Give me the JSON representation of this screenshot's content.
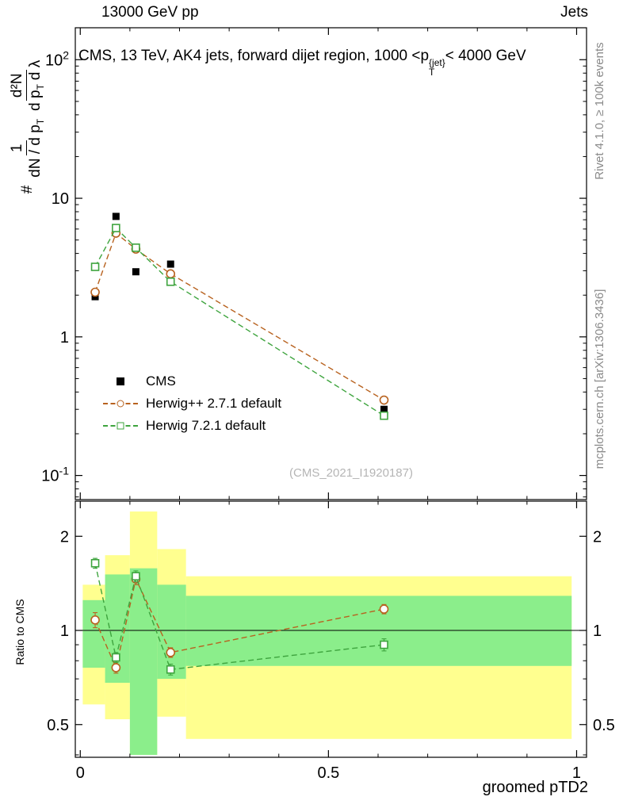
{
  "header": {
    "left": "13000 GeV pp",
    "right": "Jets"
  },
  "main_panel": {
    "title": {
      "pre": "CMS, 13 TeV, AK4 jets, forward dijet region, 1000 <p",
      "sup": "{jet}",
      "sub": "T",
      "post": "< 4000 GeV"
    },
    "watermark": "(CMS_2021_I1920187)",
    "ylabel": {
      "prefix": "#",
      "f1num": "1",
      "f1den_pre": "dN / d p",
      "f1den_sub": "T",
      "f2num": "d²N",
      "f2den_pre": "d p",
      "f2den_sub": "T",
      "f2den_post": "d λ"
    }
  },
  "side_texts": {
    "rivet": "Rivet 4.1.0, ≥ 100k events",
    "mcplots": "mcplots.cern.ch [arXiv:1306.3436]"
  },
  "legend": {
    "items": [
      {
        "label": "CMS",
        "marker": "filled-square",
        "color": "#000000",
        "line": "none"
      },
      {
        "label": "Herwig++ 2.7.1 default",
        "marker": "open-circle",
        "color": "#b8621f",
        "line": "dashed"
      },
      {
        "label": "Herwig 7.2.1 default",
        "marker": "open-square",
        "color": "#3ea43e",
        "line": "dashed"
      }
    ]
  },
  "chart_data": {
    "type": "line",
    "title": "CMS, 13 TeV, AK4 jets, forward dijet region, 1000 < pT{jet} < 4000 GeV",
    "x_label": "groomed pTD2",
    "x_range": [
      -0.01,
      1.02
    ],
    "x": [
      0.03,
      0.072,
      0.112,
      0.182,
      0.612
    ],
    "x_ticks_major": [
      {
        "v": 0,
        "t": "0"
      },
      {
        "v": 0.5,
        "t": "0.5"
      },
      {
        "v": 1,
        "t": "1"
      }
    ],
    "x_ticks_minor": [
      0.1,
      0.2,
      0.3,
      0.4,
      0.6,
      0.7,
      0.8,
      0.9
    ],
    "colors": {
      "band_yellow": "#ffff8f",
      "band_green": "#8bee8b"
    },
    "main": {
      "y_scale": "log",
      "y_range": [
        0.067,
        170
      ],
      "y_ticks": [
        {
          "v": 100,
          "base": "10",
          "exp": "2"
        },
        {
          "v": 10,
          "base": "10",
          "exp": ""
        },
        {
          "v": 1,
          "base": "1",
          "exp": ""
        },
        {
          "v": 0.1,
          "base": "10",
          "exp": "-1"
        }
      ],
      "series": [
        {
          "name": "CMS",
          "marker": "filled-square",
          "color": "#000000",
          "line": "none",
          "values": [
            1.95,
            7.4,
            2.95,
            3.35,
            0.3
          ]
        },
        {
          "name": "Herwig++ 2.7.1 default",
          "marker": "open-circle",
          "color": "#b8621f",
          "line": "dashed",
          "values": [
            2.1,
            5.6,
            4.3,
            2.85,
            0.35
          ],
          "yerr": [
            0.1,
            0.2,
            0.15,
            0.1,
            0.015
          ]
        },
        {
          "name": "Herwig 7.2.1 default",
          "marker": "open-square",
          "color": "#3ea43e",
          "line": "dashed",
          "values": [
            3.2,
            6.1,
            4.4,
            2.5,
            0.27
          ],
          "yerr": [
            0.12,
            0.2,
            0.15,
            0.1,
            0.015
          ]
        }
      ]
    },
    "ratio": {
      "label": "Ratio to CMS",
      "y_scale": "log",
      "y_range": [
        0.393,
        2.59
      ],
      "ref_line": 1,
      "y_ticks": [
        {
          "v": 2,
          "t": "2"
        },
        {
          "v": 1,
          "t": "1"
        },
        {
          "v": 0.5,
          "t": "0.5"
        }
      ],
      "series": [
        {
          "name": "Herwig++ 2.7.1 default",
          "marker": "open-circle",
          "color": "#b8621f",
          "line": "dashed",
          "values": [
            1.08,
            0.76,
            1.46,
            0.85,
            1.17
          ],
          "yerr": [
            0.06,
            0.03,
            0.06,
            0.03,
            0.04
          ]
        },
        {
          "name": "Herwig 7.2.1 default",
          "marker": "open-square",
          "color": "#3ea43e",
          "line": "dashed",
          "values": [
            1.64,
            0.82,
            1.49,
            0.75,
            0.9
          ],
          "yerr": [
            0.06,
            0.03,
            0.06,
            0.03,
            0.04
          ]
        }
      ],
      "bands": [
        {
          "x0": 0.005,
          "x1": 0.05,
          "yellow": [
            0.58,
            1.4
          ],
          "green": [
            0.76,
            1.25
          ]
        },
        {
          "x0": 0.05,
          "x1": 0.1,
          "yellow": [
            0.52,
            1.74
          ],
          "green": [
            0.68,
            1.51
          ]
        },
        {
          "x0": 0.1,
          "x1": 0.155,
          "yellow": [
            0.4,
            2.4
          ],
          "green": [
            0.4,
            1.58
          ]
        },
        {
          "x0": 0.155,
          "x1": 0.213,
          "yellow": [
            0.53,
            1.82
          ],
          "green": [
            0.7,
            1.4
          ]
        },
        {
          "x0": 0.213,
          "x1": 0.99,
          "yellow": [
            0.45,
            1.49
          ],
          "green": [
            0.77,
            1.29
          ]
        }
      ]
    }
  }
}
